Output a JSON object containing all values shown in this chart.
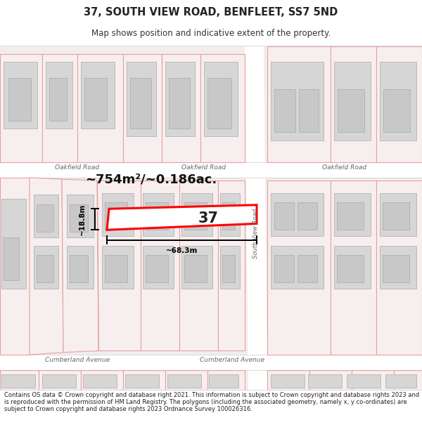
{
  "title": "37, SOUTH VIEW ROAD, BENFLEET, SS7 5ND",
  "subtitle": "Map shows position and indicative extent of the property.",
  "footer": "Contains OS data © Crown copyright and database right 2021. This information is subject to Crown copyright and database rights 2023 and is reproduced with the permission of HM Land Registry. The polygons (including the associated geometry, namely x, y co-ordinates) are subject to Crown copyright and database rights 2023 Ordnance Survey 100026316.",
  "background_color": "#ffffff",
  "map_bg": "#f2eded",
  "road_fill": "#ffffff",
  "building_fill": "#d6d6d6",
  "building_edge": "#bfb8b8",
  "parcel_edge": "#e8a0a0",
  "parcel_fill": "#f7efef",
  "highlight_color": "#ff0000",
  "highlight_fill": "#ffffff",
  "area_label": "~754m²/~0.186ac.",
  "number_label": "37",
  "width_label": "~68.3m",
  "height_label": "~18.8m",
  "road_label_oakfield": "Oakfield Road",
  "road_label_south_view": "South View Road",
  "road_label_cumberland": "Cumberland Avenue",
  "text_color": "#666666",
  "dim_color": "#000000",
  "area_fontsize": 13,
  "number_fontsize": 15
}
